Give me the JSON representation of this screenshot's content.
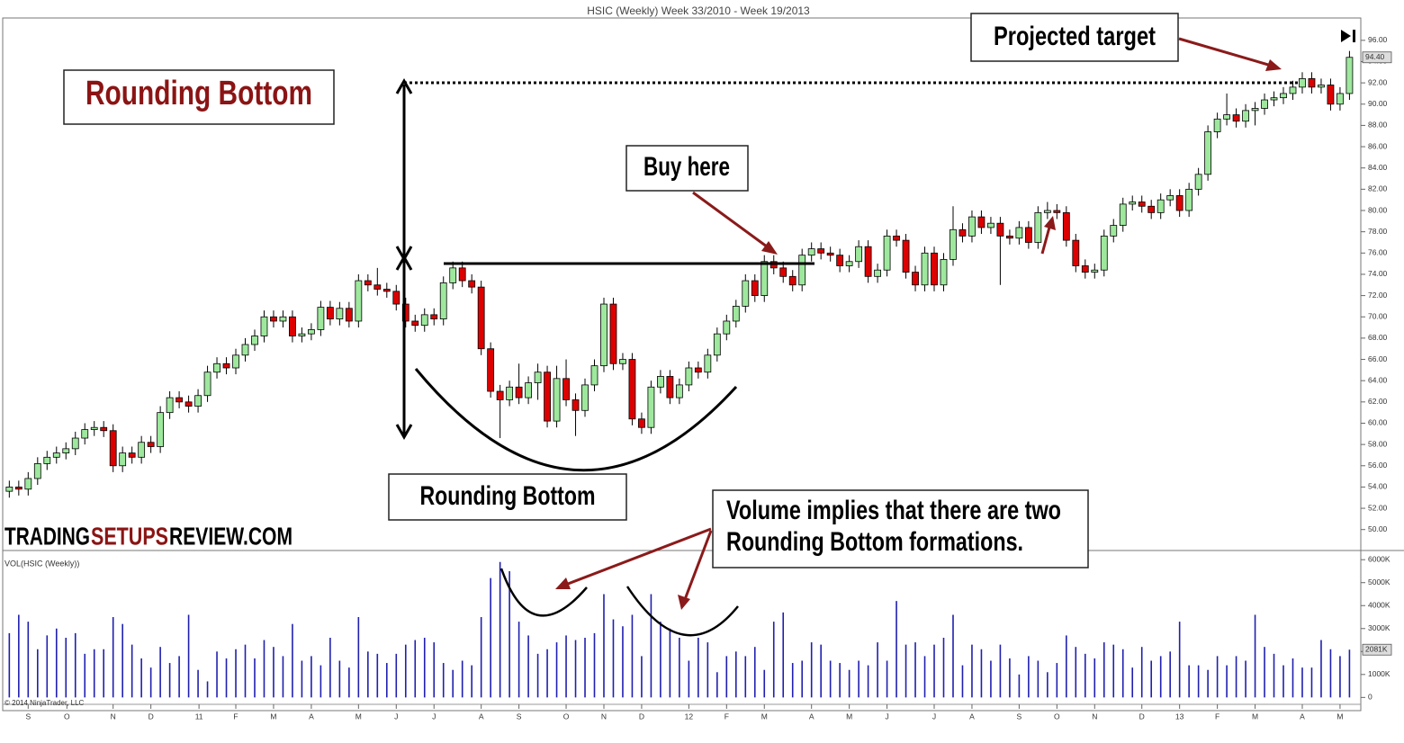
{
  "chart_data": [
    {
      "type": "candlestick",
      "title": "HSIC (Weekly)  Week 33/2010 - Week 19/2013",
      "up_color": "#9ee89e",
      "down_color": "#dd0000",
      "grid": false,
      "ylim": [
        48.2,
        98.1
      ],
      "yticks": [
        {
          "value": 50,
          "label": "50.00"
        },
        {
          "value": 52,
          "label": "52.00"
        },
        {
          "value": 54,
          "label": "54.00"
        },
        {
          "value": 56,
          "label": "56.00"
        },
        {
          "value": 58,
          "label": "58.00"
        },
        {
          "value": 60,
          "label": "60.00"
        },
        {
          "value": 62,
          "label": "62.00"
        },
        {
          "value": 64,
          "label": "64.00"
        },
        {
          "value": 66,
          "label": "66.00"
        },
        {
          "value": 68,
          "label": "68.00"
        },
        {
          "value": 70,
          "label": "70.00"
        },
        {
          "value": 72,
          "label": "72.00"
        },
        {
          "value": 74,
          "label": "74.00"
        },
        {
          "value": 76,
          "label": "76.00"
        },
        {
          "value": 78,
          "label": "78.00"
        },
        {
          "value": 80,
          "label": "80.00"
        },
        {
          "value": 82,
          "label": "82.00"
        },
        {
          "value": 84,
          "label": "84.00"
        },
        {
          "value": 86,
          "label": "86.00"
        },
        {
          "value": 88,
          "label": "88.00"
        },
        {
          "value": 90,
          "label": "90.00"
        },
        {
          "value": 92,
          "label": "92.00"
        },
        {
          "value": 94,
          "label": "94.00"
        },
        {
          "value": 96,
          "label": "96.00"
        }
      ],
      "last_value_label": "94.40",
      "annotations": {
        "pattern_label": "Rounding Bottom",
        "target_label": "Projected target",
        "entry_label": "Buy here",
        "bottom_label": "Rounding Bottom",
        "volume_note": [
          "Volume implies that there are two",
          "Rounding Bottom formations."
        ]
      },
      "watermark": [
        "TRADING",
        "SETUPS",
        "REVIEW.COM"
      ],
      "ohlc": [
        [
          53.6,
          54.6,
          53.0,
          54.0
        ],
        [
          54.0,
          54.6,
          53.2,
          53.8
        ],
        [
          53.8,
          55.4,
          53.2,
          54.8
        ],
        [
          54.8,
          56.8,
          54.2,
          56.2
        ],
        [
          56.2,
          57.4,
          55.6,
          56.8
        ],
        [
          56.8,
          57.8,
          56.2,
          57.2
        ],
        [
          57.2,
          58.2,
          56.6,
          57.6
        ],
        [
          57.6,
          59.2,
          57.0,
          58.6
        ],
        [
          58.6,
          60.0,
          58.0,
          59.4
        ],
        [
          59.4,
          60.2,
          58.8,
          59.6
        ],
        [
          59.6,
          60.2,
          58.7,
          59.3
        ],
        [
          59.3,
          59.9,
          55.4,
          56.0
        ],
        [
          56.0,
          57.8,
          55.4,
          57.2
        ],
        [
          57.2,
          57.8,
          56.2,
          56.8
        ],
        [
          56.8,
          58.8,
          56.2,
          58.2
        ],
        [
          58.2,
          58.8,
          57.2,
          57.8
        ],
        [
          57.8,
          61.6,
          57.2,
          61.0
        ],
        [
          61.0,
          63.0,
          60.4,
          62.4
        ],
        [
          62.4,
          63.0,
          61.4,
          62.0
        ],
        [
          62.0,
          62.6,
          61.0,
          61.6
        ],
        [
          61.6,
          63.2,
          61.0,
          62.6
        ],
        [
          62.6,
          65.4,
          62.0,
          64.8
        ],
        [
          64.8,
          66.2,
          64.2,
          65.6
        ],
        [
          65.6,
          66.2,
          64.6,
          65.2
        ],
        [
          65.2,
          67.0,
          64.6,
          66.4
        ],
        [
          66.4,
          68.0,
          65.8,
          67.4
        ],
        [
          67.4,
          68.8,
          66.8,
          68.2
        ],
        [
          68.2,
          70.6,
          67.6,
          70.0
        ],
        [
          70.0,
          70.6,
          69.0,
          69.6
        ],
        [
          69.6,
          70.6,
          69.0,
          70.0
        ],
        [
          70.0,
          70.6,
          67.6,
          68.2
        ],
        [
          68.2,
          69.0,
          67.6,
          68.4
        ],
        [
          68.4,
          69.4,
          67.8,
          68.8
        ],
        [
          68.8,
          71.5,
          68.2,
          70.9
        ],
        [
          70.9,
          71.5,
          69.2,
          69.8
        ],
        [
          69.8,
          71.4,
          69.2,
          70.8
        ],
        [
          70.8,
          71.4,
          69.0,
          69.6
        ],
        [
          69.6,
          74.0,
          69.0,
          73.4
        ],
        [
          73.4,
          74.0,
          72.4,
          73.0
        ],
        [
          73.0,
          74.6,
          72.0,
          72.6
        ],
        [
          72.6,
          73.2,
          71.8,
          72.4
        ],
        [
          72.4,
          73.0,
          70.6,
          71.2
        ],
        [
          71.2,
          71.8,
          69.0,
          69.6
        ],
        [
          69.6,
          70.2,
          68.6,
          69.2
        ],
        [
          69.2,
          70.8,
          68.6,
          70.2
        ],
        [
          70.2,
          70.8,
          69.2,
          69.8
        ],
        [
          69.8,
          73.8,
          69.2,
          73.2
        ],
        [
          73.2,
          75.2,
          72.6,
          74.6
        ],
        [
          74.6,
          75.2,
          72.8,
          73.4
        ],
        [
          73.4,
          74.0,
          72.2,
          72.8
        ],
        [
          72.8,
          73.4,
          66.4,
          67.0
        ],
        [
          67.0,
          67.6,
          62.4,
          63.0
        ],
        [
          63.0,
          63.6,
          58.6,
          62.2
        ],
        [
          62.2,
          64.0,
          61.6,
          63.4
        ],
        [
          63.4,
          65.6,
          61.8,
          62.4
        ],
        [
          62.4,
          64.4,
          61.8,
          63.8
        ],
        [
          63.8,
          65.6,
          62.2,
          64.8
        ],
        [
          64.8,
          65.4,
          59.6,
          60.2
        ],
        [
          60.2,
          65.4,
          59.6,
          64.2
        ],
        [
          64.2,
          66.0,
          61.6,
          62.2
        ],
        [
          62.2,
          62.8,
          58.8,
          61.2
        ],
        [
          61.2,
          64.2,
          60.6,
          63.6
        ],
        [
          63.6,
          66.0,
          63.0,
          65.4
        ],
        [
          65.4,
          71.8,
          64.8,
          71.2
        ],
        [
          71.2,
          71.8,
          65.0,
          65.6
        ],
        [
          65.6,
          66.6,
          65.0,
          66.0
        ],
        [
          66.0,
          66.6,
          59.8,
          60.4
        ],
        [
          60.4,
          61.0,
          59.0,
          59.6
        ],
        [
          59.6,
          64.0,
          59.0,
          63.4
        ],
        [
          63.4,
          65.0,
          62.8,
          64.4
        ],
        [
          64.4,
          65.0,
          61.8,
          62.4
        ],
        [
          62.4,
          64.2,
          61.8,
          63.6
        ],
        [
          63.6,
          65.8,
          63.0,
          65.2
        ],
        [
          65.2,
          65.8,
          64.2,
          64.8
        ],
        [
          64.8,
          67.0,
          64.2,
          66.4
        ],
        [
          66.4,
          69.0,
          65.8,
          68.4
        ],
        [
          68.4,
          70.2,
          67.8,
          69.6
        ],
        [
          69.6,
          71.6,
          69.0,
          71.0
        ],
        [
          71.0,
          74.0,
          70.4,
          73.4
        ],
        [
          73.4,
          74.0,
          71.4,
          72.0
        ],
        [
          72.0,
          75.8,
          71.4,
          75.2
        ],
        [
          75.2,
          75.8,
          74.0,
          74.6
        ],
        [
          74.6,
          75.2,
          73.2,
          73.8
        ],
        [
          73.8,
          74.4,
          72.4,
          73.0
        ],
        [
          73.0,
          76.4,
          72.4,
          75.8
        ],
        [
          75.8,
          77.0,
          75.2,
          76.4
        ],
        [
          76.4,
          77.0,
          75.4,
          76.0
        ],
        [
          76.0,
          76.6,
          75.2,
          75.8
        ],
        [
          75.8,
          76.4,
          74.2,
          74.8
        ],
        [
          74.8,
          75.8,
          74.2,
          75.2
        ],
        [
          75.2,
          77.2,
          74.6,
          76.6
        ],
        [
          76.6,
          77.2,
          73.2,
          73.8
        ],
        [
          73.8,
          75.0,
          73.2,
          74.4
        ],
        [
          74.4,
          78.2,
          73.8,
          77.6
        ],
        [
          77.6,
          78.2,
          76.6,
          77.2
        ],
        [
          77.2,
          77.8,
          73.6,
          74.2
        ],
        [
          74.2,
          74.8,
          72.4,
          73.0
        ],
        [
          73.0,
          76.6,
          72.4,
          76.0
        ],
        [
          76.0,
          76.6,
          72.4,
          73.0
        ],
        [
          73.0,
          76.0,
          72.4,
          75.4
        ],
        [
          75.4,
          80.4,
          74.8,
          78.2
        ],
        [
          78.2,
          78.8,
          77.0,
          77.6
        ],
        [
          77.6,
          80.0,
          77.0,
          79.4
        ],
        [
          79.4,
          80.0,
          77.8,
          78.4
        ],
        [
          78.4,
          79.4,
          77.8,
          78.8
        ],
        [
          78.8,
          79.4,
          73.0,
          77.6
        ],
        [
          77.6,
          78.2,
          76.8,
          77.4
        ],
        [
          77.4,
          79.0,
          76.8,
          78.4
        ],
        [
          78.4,
          79.0,
          76.4,
          77.0
        ],
        [
          77.0,
          80.4,
          76.4,
          79.8
        ],
        [
          79.8,
          80.8,
          79.2,
          80.0
        ],
        [
          80.0,
          80.6,
          79.2,
          79.8
        ],
        [
          79.8,
          80.4,
          76.6,
          77.2
        ],
        [
          77.2,
          77.8,
          74.2,
          74.8
        ],
        [
          74.8,
          75.4,
          73.6,
          74.2
        ],
        [
          74.2,
          75.0,
          73.6,
          74.4
        ],
        [
          74.4,
          78.2,
          73.8,
          77.6
        ],
        [
          77.6,
          79.2,
          77.0,
          78.6
        ],
        [
          78.6,
          81.2,
          78.0,
          80.6
        ],
        [
          80.6,
          81.4,
          80.0,
          80.8
        ],
        [
          80.8,
          81.4,
          79.8,
          80.4
        ],
        [
          80.4,
          81.0,
          79.2,
          79.8
        ],
        [
          79.8,
          81.6,
          79.2,
          81.0
        ],
        [
          81.0,
          82.0,
          80.4,
          81.4
        ],
        [
          81.4,
          82.0,
          79.4,
          80.0
        ],
        [
          80.0,
          82.6,
          79.4,
          82.0
        ],
        [
          82.0,
          84.0,
          81.4,
          83.4
        ],
        [
          83.4,
          88.0,
          82.8,
          87.4
        ],
        [
          87.4,
          89.2,
          86.8,
          88.6
        ],
        [
          88.6,
          91.0,
          88.0,
          89.0
        ],
        [
          89.0,
          89.6,
          87.8,
          88.4
        ],
        [
          88.4,
          90.0,
          87.8,
          89.4
        ],
        [
          89.4,
          90.2,
          88.0,
          89.6
        ],
        [
          89.6,
          91.0,
          89.0,
          90.4
        ],
        [
          90.4,
          91.2,
          89.8,
          90.6
        ],
        [
          90.6,
          91.6,
          90.0,
          91.0
        ],
        [
          91.0,
          92.2,
          90.4,
          91.6
        ],
        [
          91.6,
          93.0,
          91.0,
          92.4
        ],
        [
          92.4,
          93.0,
          91.0,
          91.6
        ],
        [
          91.6,
          92.4,
          91.0,
          91.8
        ],
        [
          91.8,
          92.4,
          89.4,
          90.0
        ],
        [
          90.0,
          91.6,
          89.4,
          91.0
        ],
        [
          91.0,
          95.0,
          90.4,
          94.4
        ]
      ]
    },
    {
      "type": "bar",
      "title": "VOL(HSIC (Weekly))",
      "color": "#1f1fb0",
      "copyright": "© 2014 NinjaTrader, LLC",
      "ylim": [
        -300,
        6400
      ],
      "yticks": [
        0,
        {
          "value": 1000,
          "label": "1000K"
        },
        {
          "value": 2000,
          "label": "2000K"
        },
        {
          "value": 3000,
          "label": "3000K"
        },
        {
          "value": 4000,
          "label": "4000K"
        },
        {
          "value": 5000,
          "label": "5000K"
        },
        {
          "value": 6000,
          "label": "6000K"
        }
      ],
      "last_value_label": "2081K",
      "xlim": [
        -0.7,
        143.2
      ],
      "xticks": [
        {
          "value": 2,
          "label": "S"
        },
        {
          "value": 6.1,
          "label": "O"
        },
        {
          "value": 11,
          "label": "N"
        },
        {
          "value": 15,
          "label": "D"
        },
        {
          "value": 20.1,
          "label": "11"
        },
        {
          "value": 24,
          "label": "F"
        },
        {
          "value": 28,
          "label": "M"
        },
        {
          "value": 32,
          "label": "A"
        },
        {
          "value": 37,
          "label": "M"
        },
        {
          "value": 41,
          "label": "J"
        },
        {
          "value": 45,
          "label": "J"
        },
        {
          "value": 50,
          "label": "A"
        },
        {
          "value": 54,
          "label": "S"
        },
        {
          "value": 59,
          "label": "O"
        },
        {
          "value": 63,
          "label": "N"
        },
        {
          "value": 67,
          "label": "D"
        },
        {
          "value": 72,
          "label": "12"
        },
        {
          "value": 76,
          "label": "F"
        },
        {
          "value": 80,
          "label": "M"
        },
        {
          "value": 85,
          "label": "A"
        },
        {
          "value": 89,
          "label": "M"
        },
        {
          "value": 93,
          "label": "J"
        },
        {
          "value": 98,
          "label": "J"
        },
        {
          "value": 102,
          "label": "A"
        },
        {
          "value": 107,
          "label": "S"
        },
        {
          "value": 111,
          "label": "O"
        },
        {
          "value": 115,
          "label": "N"
        },
        {
          "value": 120,
          "label": "D"
        },
        {
          "value": 124,
          "label": "13"
        },
        {
          "value": 128,
          "label": "F"
        },
        {
          "value": 132,
          "label": "M"
        },
        {
          "value": 137,
          "label": "A"
        },
        {
          "value": 141,
          "label": "M"
        }
      ],
      "values": [
        2800,
        3600,
        3300,
        2100,
        2700,
        3000,
        2600,
        2800,
        1900,
        2100,
        2100,
        3500,
        3200,
        2300,
        1700,
        1300,
        2200,
        1500,
        1800,
        3600,
        1200,
        700,
        2000,
        1700,
        2100,
        2300,
        1700,
        2500,
        2200,
        1800,
        3200,
        1600,
        1800,
        1400,
        2600,
        1600,
        1300,
        3500,
        2000,
        1900,
        1500,
        1900,
        2300,
        2500,
        2600,
        2400,
        1500,
        1200,
        1600,
        1400,
        3500,
        5200,
        5900,
        5500,
        3300,
        2700,
        1900,
        2100,
        2400,
        2700,
        2500,
        2600,
        2800,
        4500,
        3400,
        3100,
        3600,
        1800,
        4500,
        3300,
        3000,
        2600,
        1600,
        2600,
        2400,
        1100,
        1800,
        2000,
        1800,
        2200,
        1200,
        3300,
        3700,
        1500,
        1600,
        2400,
        2300,
        1600,
        1500,
        1200,
        1600,
        1400,
        2400,
        1600,
        4200,
        2300,
        2400,
        1800,
        2300,
        2600,
        3600,
        1400,
        2300,
        2100,
        1600,
        2300,
        1700,
        1000,
        1800,
        1600,
        1100,
        1500,
        2700,
        2200,
        1900,
        1700,
        2400,
        2300,
        2100,
        1300,
        2200,
        1600,
        1800,
        2000,
        3300,
        1400,
        1400,
        1200,
        1800,
        1400,
        1800,
        1600,
        3600,
        2200,
        1900,
        1400,
        1700,
        1300,
        1300,
        2500,
        2100,
        1800,
        2081
      ]
    }
  ]
}
